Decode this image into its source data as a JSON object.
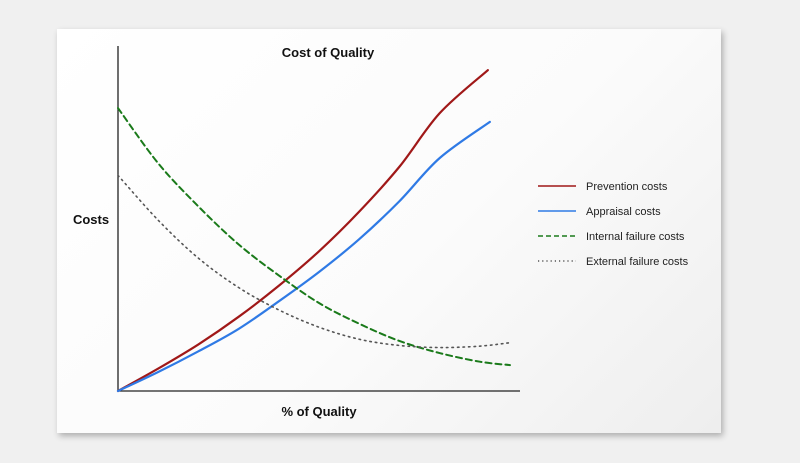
{
  "chart_data": {
    "type": "line",
    "title": "Cost of Quality",
    "xlabel": "% of Quality",
    "ylabel": "Costs",
    "xlim": [
      0,
      100
    ],
    "ylim": [
      0,
      100
    ],
    "grid": false,
    "legend_position": "right",
    "series": [
      {
        "name": "Prevention costs",
        "color": "#a01818",
        "style": "solid",
        "x": [
          0,
          10,
          20,
          30,
          40,
          50,
          60,
          70,
          80,
          92
        ],
        "y": [
          0,
          6.5,
          13.5,
          21.5,
          30.5,
          40.5,
          52,
          65,
          80.5,
          93
        ]
      },
      {
        "name": "Appraisal costs",
        "color": "#2f7ae5",
        "style": "solid",
        "x": [
          0,
          10,
          20,
          30,
          40,
          50,
          60,
          70,
          80,
          92.5
        ],
        "y": [
          0,
          5.5,
          11.5,
          18,
          26,
          34.5,
          44,
          55,
          67.5,
          78
        ]
      },
      {
        "name": "Internal failure costs",
        "color": "#1a7a1a",
        "style": "dashed",
        "x": [
          0,
          10,
          20,
          30,
          40,
          50,
          60,
          70,
          80,
          90,
          97.5
        ],
        "y": [
          82,
          66,
          53.5,
          42.5,
          33.5,
          25.5,
          19.5,
          14.5,
          11,
          8.5,
          7.5
        ]
      },
      {
        "name": "External failure costs",
        "color": "#555555",
        "style": "dotted",
        "x": [
          0,
          10,
          20,
          30,
          40,
          50,
          60,
          70,
          80,
          90,
          97.5
        ],
        "y": [
          62.5,
          49.5,
          38.5,
          30,
          23.5,
          18.5,
          15,
          13.2,
          12.6,
          13,
          14
        ]
      }
    ]
  }
}
